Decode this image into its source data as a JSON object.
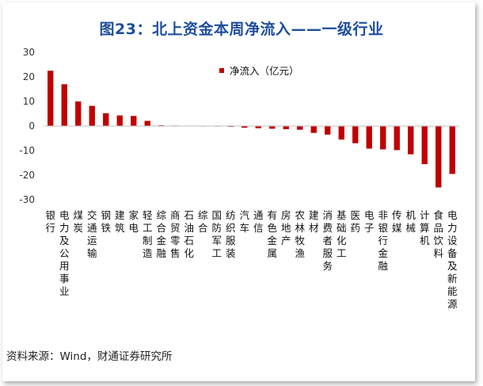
{
  "title": "图23：北上资金本周净流入——一级行业",
  "source": "资料来源：Wind，财通证券研究所",
  "chart_data": {
    "type": "bar",
    "categories": [
      "银行",
      "电力及公用事业",
      "煤炭",
      "交通运输",
      "钢铁",
      "建筑",
      "家电",
      "轻工制造",
      "综合金融",
      "商贸零售",
      "石油石化",
      "综合",
      "国防军工",
      "纺织服装",
      "汽车",
      "通信",
      "有色金属",
      "房地产",
      "农林牧渔",
      "建材",
      "消费者服务",
      "基础化工",
      "医药",
      "电子",
      "非银行金融",
      "传媒",
      "机械",
      "计算机",
      "食品饮料",
      "电力设备及新能源"
    ],
    "series": [
      {
        "name": "净流入（亿元）",
        "values": [
          22.5,
          17.0,
          10.0,
          8.2,
          5.2,
          4.3,
          4.1,
          2.1,
          0.3,
          0.2,
          0.1,
          -0.1,
          -0.2,
          -0.3,
          -0.7,
          -0.9,
          -1.1,
          -1.3,
          -1.5,
          -2.8,
          -3.5,
          -5.5,
          -7.0,
          -9.2,
          -9.5,
          -9.8,
          -11.5,
          -15.5,
          -25.0,
          -19.5
        ]
      }
    ],
    "ylim": [
      -30,
      30
    ],
    "yticks": [
      30,
      20,
      10,
      0,
      -10,
      -20,
      -30
    ],
    "bar_color": "#c00000",
    "legend_position": "top-right",
    "grid": false
  }
}
